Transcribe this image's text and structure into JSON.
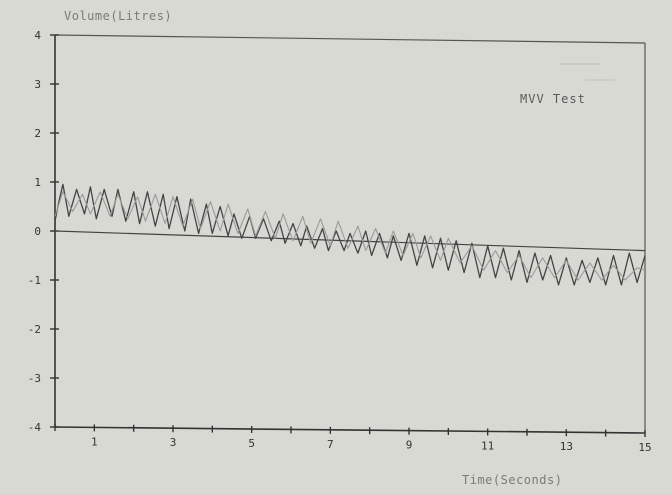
{
  "chart_data": {
    "type": "line",
    "ylabel": "Volume(Litres)",
    "xlabel": "Time(Seconds)",
    "annotation": "MVV Test",
    "legend_position": "top-right",
    "grid": false,
    "xlim": [
      0,
      15
    ],
    "ylim": [
      -4,
      4
    ],
    "x_ticks": [
      1,
      3,
      5,
      7,
      9,
      11,
      13,
      15
    ],
    "y_ticks": [
      4,
      3,
      2,
      1,
      0,
      -1,
      -2,
      -3,
      -4
    ],
    "y_tick_labels": [
      "4",
      "3",
      "2",
      "1",
      "0",
      "-1",
      "-2",
      "-3",
      "-4"
    ],
    "baseline": {
      "x": [
        0,
        15
      ],
      "y": [
        0,
        -0.4
      ]
    },
    "series": [
      {
        "color": "#444444",
        "x": [
          0,
          0.1,
          0.2,
          0.35,
          0.55,
          0.75,
          0.9,
          1.05,
          1.25,
          1.45,
          1.6,
          1.8,
          2.0,
          2.15,
          2.35,
          2.55,
          2.75,
          2.9,
          3.1,
          3.3,
          3.45,
          3.65,
          3.85,
          4.0,
          4.2,
          4.4,
          4.55,
          4.75,
          4.95,
          5.1,
          5.3,
          5.5,
          5.7,
          5.85,
          6.05,
          6.25,
          6.4,
          6.6,
          6.8,
          6.95,
          7.15,
          7.35,
          7.5,
          7.7,
          7.9,
          8.05,
          8.25,
          8.45,
          8.6,
          8.8,
          9.0,
          9.2,
          9.4,
          9.6,
          9.8,
          10.0,
          10.2,
          10.4,
          10.6,
          10.8,
          11.0,
          11.2,
          11.4,
          11.6,
          11.8,
          12.0,
          12.2,
          12.4,
          12.6,
          12.8,
          13.0,
          13.2,
          13.4,
          13.6,
          13.8,
          14.0,
          14.2,
          14.4,
          14.6,
          14.8,
          15.0
        ],
        "y": [
          0.2,
          0.6,
          0.95,
          0.3,
          0.85,
          0.35,
          0.9,
          0.25,
          0.85,
          0.3,
          0.85,
          0.2,
          0.8,
          0.15,
          0.8,
          0.1,
          0.75,
          0.05,
          0.7,
          0.0,
          0.65,
          -0.05,
          0.55,
          -0.05,
          0.5,
          -0.1,
          0.35,
          -0.15,
          0.3,
          -0.15,
          0.25,
          -0.2,
          0.2,
          -0.25,
          0.15,
          -0.3,
          0.1,
          -0.35,
          0.05,
          -0.4,
          0.0,
          -0.4,
          -0.05,
          -0.45,
          0.0,
          -0.5,
          -0.05,
          -0.55,
          -0.1,
          -0.6,
          -0.05,
          -0.7,
          -0.1,
          -0.75,
          -0.15,
          -0.8,
          -0.2,
          -0.85,
          -0.25,
          -0.95,
          -0.3,
          -0.95,
          -0.35,
          -1.0,
          -0.4,
          -1.05,
          -0.45,
          -1.0,
          -0.5,
          -1.1,
          -0.55,
          -1.1,
          -0.6,
          -1.05,
          -0.55,
          -1.1,
          -0.5,
          -1.1,
          -0.45,
          -1.05,
          -0.5
        ]
      },
      {
        "color": "#9a9a9a",
        "x": [
          0,
          0.2,
          0.45,
          0.7,
          0.9,
          1.15,
          1.4,
          1.6,
          1.85,
          2.1,
          2.3,
          2.55,
          2.8,
          3.0,
          3.25,
          3.5,
          3.7,
          3.95,
          4.2,
          4.4,
          4.65,
          4.9,
          5.1,
          5.35,
          5.6,
          5.8,
          6.05,
          6.3,
          6.5,
          6.75,
          7.0,
          7.2,
          7.45,
          7.7,
          7.9,
          8.15,
          8.4,
          8.6,
          8.85,
          9.1,
          9.3,
          9.55,
          9.8,
          10.0,
          10.3,
          10.6,
          10.9,
          11.2,
          11.5,
          11.8,
          12.1,
          12.4,
          12.7,
          13.0,
          13.3,
          13.6,
          13.9,
          14.2,
          14.5,
          14.8,
          15.0
        ],
        "y": [
          0.3,
          0.8,
          0.4,
          0.75,
          0.35,
          0.8,
          0.3,
          0.75,
          0.25,
          0.7,
          0.2,
          0.75,
          0.15,
          0.7,
          0.1,
          0.65,
          0.05,
          0.6,
          0.0,
          0.55,
          -0.05,
          0.45,
          -0.1,
          0.4,
          -0.15,
          0.35,
          -0.2,
          0.3,
          -0.25,
          0.25,
          -0.3,
          0.2,
          -0.35,
          0.1,
          -0.4,
          0.05,
          -0.45,
          0.0,
          -0.5,
          -0.05,
          -0.55,
          -0.1,
          -0.6,
          -0.15,
          -0.65,
          -0.3,
          -0.8,
          -0.4,
          -0.85,
          -0.5,
          -0.95,
          -0.55,
          -0.95,
          -0.6,
          -1.0,
          -0.65,
          -1.0,
          -0.7,
          -1.0,
          -0.75,
          -0.8
        ]
      }
    ]
  }
}
